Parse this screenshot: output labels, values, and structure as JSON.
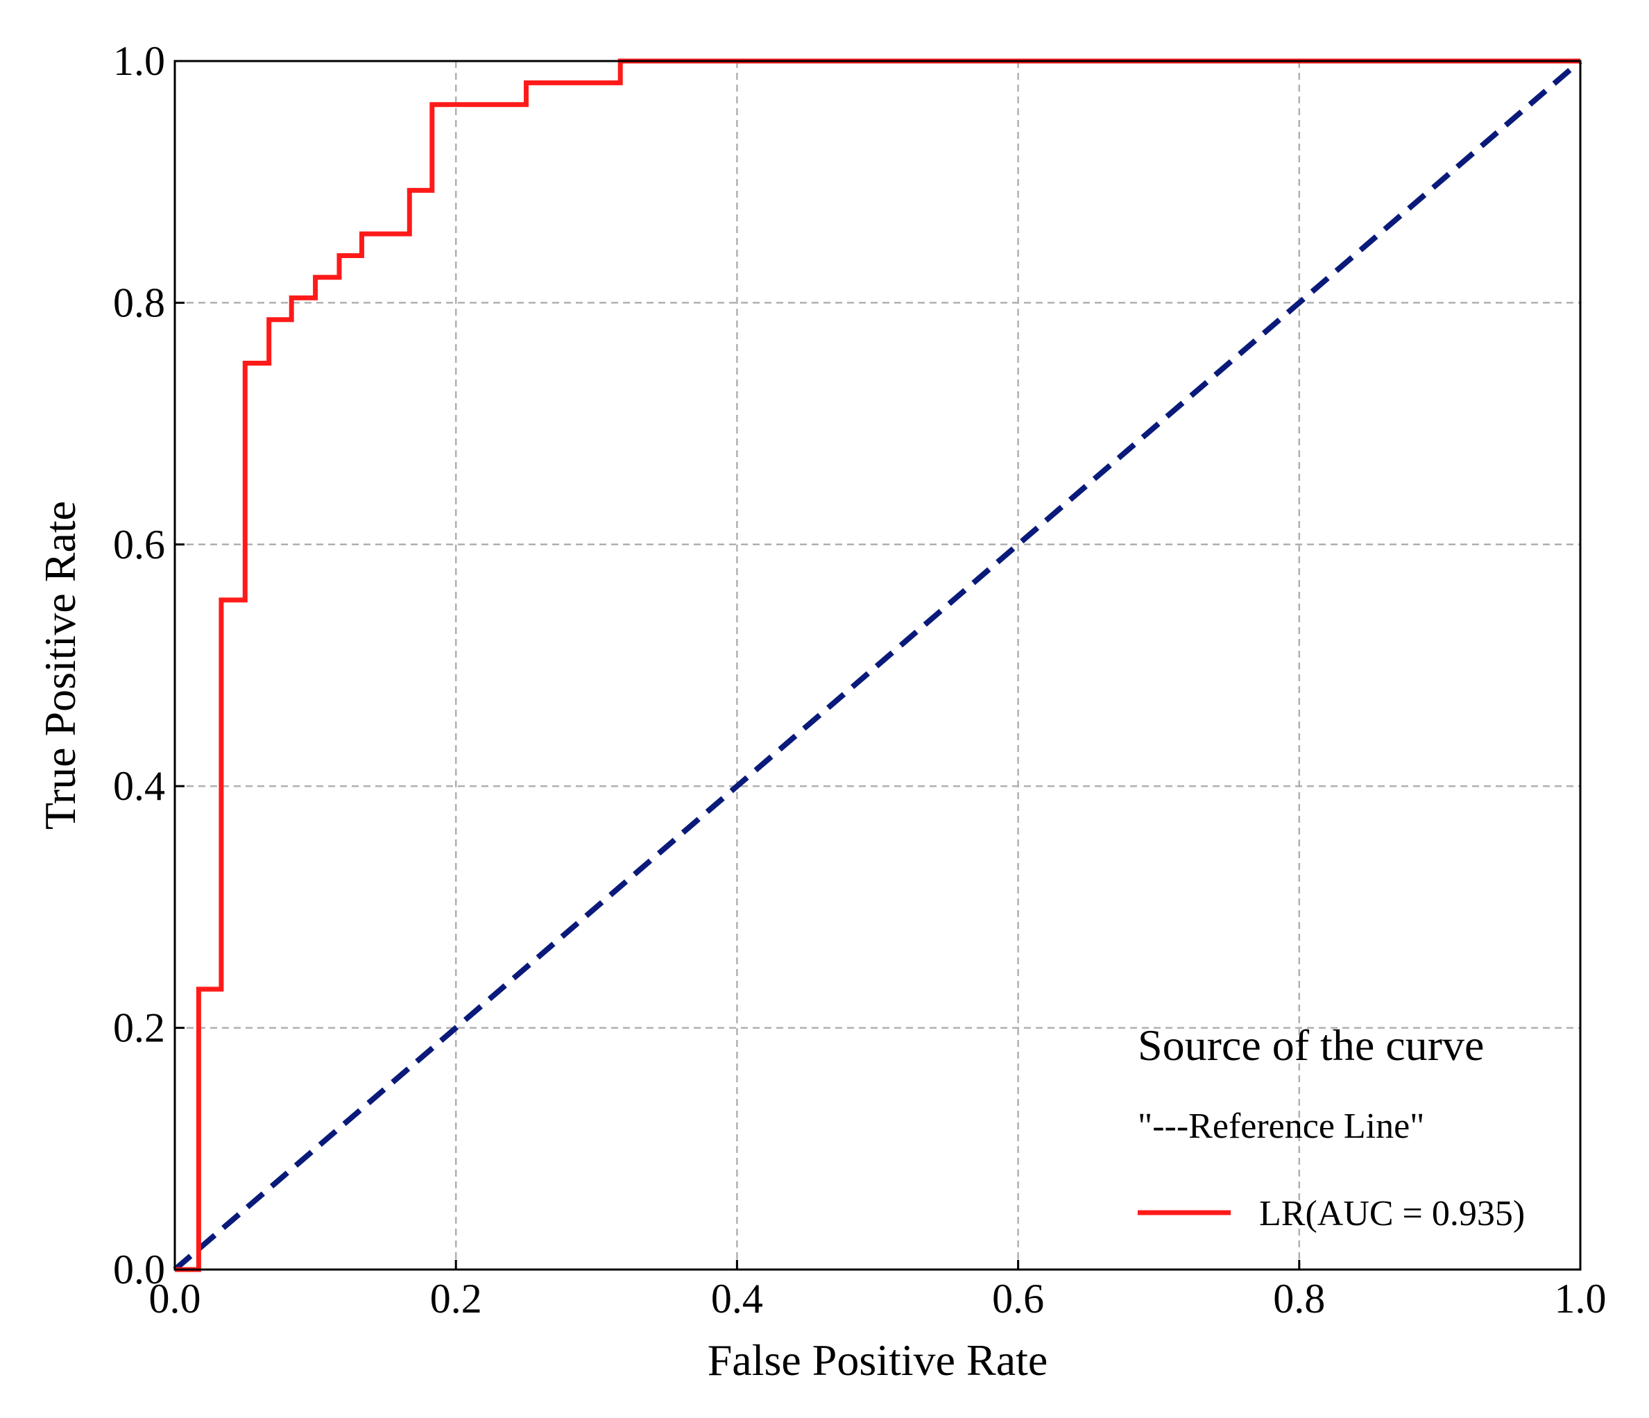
{
  "chart_data": {
    "type": "line",
    "title": "",
    "xlabel": "False Positive Rate",
    "ylabel": "True Positive Rate",
    "xlim": [
      0.0,
      1.0
    ],
    "ylim": [
      0.0,
      1.0
    ],
    "xticks": [
      "0.0",
      "0.2",
      "0.4",
      "0.6",
      "0.8",
      "1.0"
    ],
    "yticks": [
      "0.0",
      "0.2",
      "0.4",
      "0.6",
      "0.8",
      "1.0"
    ],
    "grid": true,
    "legend": {
      "title": "Source of the curve",
      "entries": [
        "\"---Reference Line\"",
        "LR(AUC = 0.935)"
      ],
      "location": "lower-right"
    },
    "series": [
      {
        "name": "Reference Line",
        "style": "dashed",
        "color": "#0a1a7a",
        "x": [
          0.0,
          1.0
        ],
        "y": [
          0.0,
          1.0
        ]
      },
      {
        "name": "LR(AUC = 0.935)",
        "style": "step",
        "color": "#ff1a1a",
        "x": [
          0.0,
          0.017,
          0.017,
          0.033,
          0.033,
          0.05,
          0.05,
          0.067,
          0.067,
          0.083,
          0.083,
          0.1,
          0.1,
          0.117,
          0.117,
          0.133,
          0.133,
          0.167,
          0.167,
          0.183,
          0.183,
          0.25,
          0.25,
          0.317,
          0.317,
          1.0
        ],
        "y": [
          0.0,
          0.0,
          0.232,
          0.232,
          0.554,
          0.554,
          0.75,
          0.75,
          0.786,
          0.786,
          0.804,
          0.804,
          0.821,
          0.821,
          0.839,
          0.839,
          0.857,
          0.857,
          0.893,
          0.893,
          0.964,
          0.964,
          0.982,
          0.982,
          1.0,
          1.0
        ]
      }
    ]
  }
}
